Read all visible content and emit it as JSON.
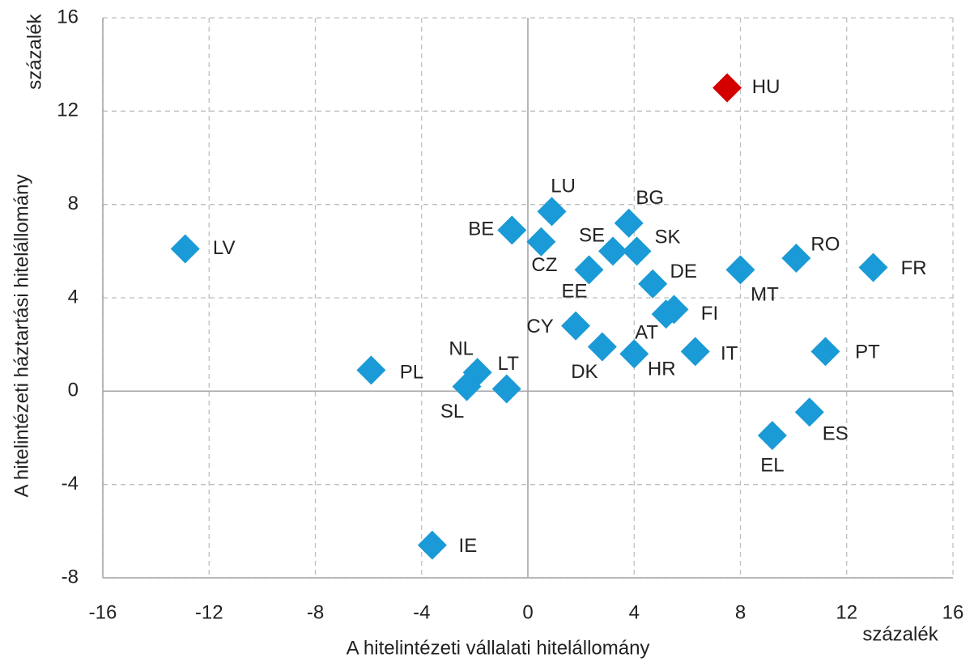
{
  "chart_data": {
    "type": "scatter",
    "x_label": "A hitelintézeti vállalati hitelállomány",
    "y_label": "A hitelintézeti háztartási hitelállomány",
    "x_unit": "százalék",
    "y_unit": "százalék",
    "xlim": [
      -16,
      16
    ],
    "ylim": [
      -8,
      16
    ],
    "xticks": [
      -16,
      -12,
      -8,
      -4,
      0,
      4,
      8,
      12,
      16
    ],
    "yticks": [
      -8,
      -4,
      0,
      4,
      8,
      12,
      16
    ],
    "grid": true,
    "series": [
      {
        "color": "#1a9ad6",
        "labels": [
          "LV",
          "BE",
          "LU",
          "CZ",
          "BG",
          "SE",
          "SK",
          "EE",
          "DE",
          "MT",
          "RO",
          "FR",
          "FI",
          "AT",
          "CY",
          "DK",
          "HR",
          "IT",
          "PT",
          "PL",
          "NL",
          "SL",
          "LT",
          "ES",
          "EL",
          "IE"
        ],
        "x": [
          -12.9,
          -0.6,
          0.9,
          0.5,
          3.8,
          3.2,
          4.1,
          2.3,
          4.7,
          8.0,
          10.1,
          13.0,
          5.5,
          5.2,
          1.8,
          2.8,
          4.0,
          6.3,
          11.2,
          -5.9,
          -1.9,
          -2.3,
          -0.8,
          10.6,
          9.2,
          -3.6
        ],
        "values": [
          6.1,
          6.9,
          7.7,
          6.4,
          7.2,
          6.0,
          6.0,
          5.2,
          4.6,
          5.2,
          5.7,
          5.3,
          3.5,
          3.3,
          2.8,
          1.9,
          1.6,
          1.7,
          1.7,
          0.9,
          0.8,
          0.2,
          0.1,
          -0.9,
          -1.9,
          -6.6
        ]
      },
      {
        "color": "#d40000",
        "labels": [
          "HU"
        ],
        "x": [
          7.5
        ],
        "values": [
          13.0
        ]
      }
    ]
  }
}
